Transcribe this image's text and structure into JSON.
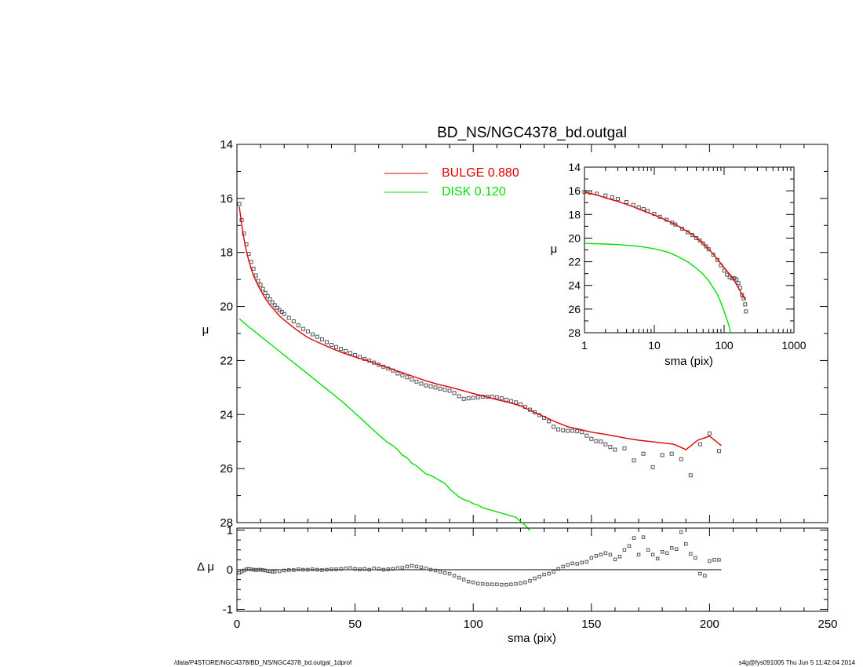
{
  "footer": {
    "path": "/data/P4STORE/NGC4378/BD_NS/NGC4378_bd.outgal_1dprof",
    "stamp": "s4g@fys091005  Thu Jun  5 11:42:04 2014"
  },
  "colors": {
    "bulge": "#e00000",
    "disk": "#00e000",
    "data": "#555555",
    "axis": "#000000"
  },
  "chart_data": [
    {
      "type": "scatter",
      "panel": "main",
      "title": "BD_NS/NGC4378_bd.outgal",
      "xlabel": "",
      "ylabel": "μ",
      "xlim": [
        0,
        250
      ],
      "ylim": [
        28,
        14
      ],
      "y_inverted": true,
      "xticks": [
        0,
        50,
        100,
        150,
        200,
        250
      ],
      "yticks": [
        14,
        16,
        18,
        20,
        22,
        24,
        26,
        28
      ],
      "ytick_labels": [
        "14",
        "16",
        "18",
        "20",
        "22",
        "24",
        "26",
        "28"
      ],
      "legend": {
        "placement": "top-center",
        "entries": [
          {
            "key": "bulge",
            "label": "BULGE  0.880"
          },
          {
            "key": "disk",
            "label": "DISK  0.120"
          }
        ]
      },
      "series": [
        {
          "key": "data",
          "style": "squares",
          "x": [
            1,
            2,
            3,
            4,
            5,
            6,
            7,
            8,
            9,
            10,
            11,
            12,
            13,
            14,
            15,
            16,
            17,
            18,
            19,
            20,
            22,
            24,
            26,
            28,
            30,
            32,
            34,
            36,
            38,
            40,
            42,
            44,
            46,
            48,
            50,
            52,
            54,
            56,
            58,
            60,
            62,
            64,
            66,
            68,
            70,
            72,
            74,
            76,
            78,
            80,
            82,
            84,
            86,
            88,
            90,
            92,
            94,
            96,
            98,
            100,
            102,
            104,
            106,
            108,
            110,
            112,
            114,
            116,
            118,
            120,
            122,
            124,
            126,
            128,
            130,
            132,
            134,
            136,
            138,
            140,
            142,
            144,
            146,
            148,
            150,
            152,
            154,
            156,
            158,
            160,
            164,
            168,
            172,
            176,
            180,
            184,
            188,
            192,
            196,
            200,
            204
          ],
          "y": [
            16.2,
            16.8,
            17.3,
            17.7,
            18.05,
            18.35,
            18.6,
            18.85,
            19.05,
            19.2,
            19.35,
            19.5,
            19.62,
            19.74,
            19.85,
            19.95,
            20.05,
            20.13,
            20.2,
            20.28,
            20.42,
            20.55,
            20.7,
            20.83,
            20.92,
            21.03,
            21.12,
            21.22,
            21.32,
            21.42,
            21.5,
            21.57,
            21.65,
            21.72,
            21.8,
            21.87,
            21.94,
            22.0,
            22.08,
            22.16,
            22.23,
            22.3,
            22.37,
            22.48,
            22.55,
            22.62,
            22.7,
            22.78,
            22.86,
            22.92,
            22.96,
            23.0,
            23.04,
            23.08,
            23.12,
            23.2,
            23.32,
            23.42,
            23.4,
            23.38,
            23.36,
            23.34,
            23.34,
            23.34,
            23.36,
            23.4,
            23.45,
            23.5,
            23.55,
            23.62,
            23.72,
            23.82,
            23.92,
            24.02,
            24.12,
            24.25,
            24.45,
            24.55,
            24.58,
            24.6,
            24.6,
            24.62,
            24.65,
            24.78,
            24.9,
            24.98,
            25.0,
            25.1,
            25.2,
            25.3,
            25.25,
            25.7,
            25.45,
            25.95,
            25.5,
            25.45,
            25.65,
            26.25,
            25.1,
            24.7,
            25.35
          ]
        },
        {
          "key": "bulge",
          "style": "line",
          "x": [
            1,
            2,
            3,
            4,
            5,
            6,
            7,
            8,
            10,
            12,
            14,
            16,
            18,
            20,
            25,
            30,
            35,
            40,
            45,
            50,
            55,
            60,
            65,
            70,
            75,
            80,
            85,
            90,
            95,
            100,
            105,
            110,
            115,
            120,
            125,
            130,
            135,
            140,
            145,
            150,
            155,
            160,
            165,
            170,
            175,
            180,
            185,
            190,
            195,
            200,
            205
          ],
          "y": [
            16.3,
            16.95,
            17.5,
            17.95,
            18.3,
            18.6,
            18.85,
            19.05,
            19.4,
            19.7,
            19.95,
            20.15,
            20.35,
            20.5,
            20.85,
            21.15,
            21.35,
            21.55,
            21.72,
            21.87,
            22.0,
            22.15,
            22.3,
            22.45,
            22.6,
            22.75,
            22.88,
            22.98,
            23.1,
            23.22,
            23.33,
            23.45,
            23.55,
            23.68,
            23.88,
            24.08,
            24.28,
            24.45,
            24.55,
            24.65,
            24.72,
            24.8,
            24.88,
            24.95,
            25.0,
            25.05,
            25.1,
            25.3,
            24.95,
            24.8,
            25.15
          ]
        },
        {
          "key": "disk",
          "style": "line",
          "x": [
            1,
            5,
            10,
            15,
            20,
            25,
            30,
            35,
            40,
            45,
            50,
            55,
            60,
            62,
            64,
            66,
            68,
            70,
            72,
            74,
            76,
            78,
            80,
            82,
            84,
            86,
            88,
            90,
            92,
            94,
            96,
            98,
            100,
            102,
            104,
            106,
            108,
            110,
            112,
            114,
            116,
            118,
            120,
            122,
            124
          ],
          "y": [
            20.45,
            20.75,
            21.1,
            21.45,
            21.8,
            22.15,
            22.5,
            22.85,
            23.2,
            23.55,
            23.95,
            24.35,
            24.75,
            24.9,
            25.05,
            25.15,
            25.3,
            25.5,
            25.6,
            25.8,
            25.9,
            26.05,
            26.2,
            26.25,
            26.35,
            26.45,
            26.55,
            26.75,
            26.9,
            27.05,
            27.15,
            27.2,
            27.3,
            27.35,
            27.45,
            27.5,
            27.55,
            27.6,
            27.65,
            27.7,
            27.75,
            27.8,
            27.95,
            28.1,
            28.3
          ]
        }
      ]
    },
    {
      "type": "scatter",
      "panel": "inset",
      "title": "",
      "xlabel": "sma (pix)",
      "ylabel": "μ",
      "xscale": "log",
      "xlim": [
        1,
        1000
      ],
      "ylim": [
        28,
        14
      ],
      "y_inverted": true,
      "xticks": [
        1,
        10,
        100,
        1000
      ],
      "xtick_labels": [
        "1",
        "10",
        "100",
        "1000"
      ],
      "yticks": [
        14,
        16,
        18,
        20,
        22,
        24,
        26,
        28
      ],
      "ytick_labels": [
        "14",
        "16",
        "18",
        "20",
        "22",
        "24",
        "26",
        "28"
      ],
      "series": [
        {
          "key": "data",
          "style": "squares",
          "x": [
            1,
            1.2,
            1.5,
            2,
            2.5,
            3,
            4,
            5,
            6,
            7,
            8,
            10,
            12,
            15,
            18,
            20,
            25,
            30,
            35,
            40,
            45,
            50,
            55,
            60,
            70,
            80,
            90,
            100,
            110,
            120,
            130,
            140,
            150,
            160,
            170,
            180,
            190,
            200,
            205
          ],
          "y": [
            16.1,
            16.15,
            16.25,
            16.4,
            16.55,
            16.7,
            16.95,
            17.2,
            17.4,
            17.55,
            17.7,
            17.95,
            18.2,
            18.45,
            18.7,
            18.85,
            19.2,
            19.5,
            19.75,
            20.0,
            20.2,
            20.45,
            20.7,
            20.95,
            21.4,
            21.85,
            22.3,
            22.75,
            23.1,
            23.3,
            23.4,
            23.4,
            23.5,
            23.8,
            24.2,
            24.8,
            25.1,
            25.6,
            26.2
          ]
        },
        {
          "key": "bulge",
          "style": "line",
          "x": [
            1,
            1.5,
            2,
            3,
            4,
            5,
            7,
            10,
            15,
            20,
            30,
            40,
            50,
            70,
            100,
            130,
            160,
            190,
            205
          ],
          "y": [
            16.1,
            16.35,
            16.6,
            16.9,
            17.15,
            17.35,
            17.7,
            18.05,
            18.5,
            18.85,
            19.45,
            19.95,
            20.45,
            21.35,
            22.5,
            23.3,
            24.2,
            25.0,
            25.2
          ]
        },
        {
          "key": "disk",
          "style": "line",
          "x": [
            1,
            2,
            3,
            5,
            7,
            10,
            15,
            20,
            30,
            40,
            50,
            60,
            70,
            80,
            90,
            100,
            110,
            120,
            124
          ],
          "y": [
            20.45,
            20.5,
            20.55,
            20.65,
            20.75,
            20.9,
            21.15,
            21.45,
            22.0,
            22.55,
            23.05,
            23.6,
            24.2,
            24.75,
            25.45,
            26.2,
            26.9,
            27.6,
            28.1
          ]
        }
      ]
    },
    {
      "type": "scatter",
      "panel": "residual",
      "title": "",
      "xlabel": "sma (pix)",
      "ylabel": "Δ μ",
      "xlim": [
        0,
        250
      ],
      "ylim": [
        -1.05,
        1.05
      ],
      "xticks": [
        0,
        50,
        100,
        150,
        200,
        250
      ],
      "xtick_labels": [
        "0",
        "50",
        "100",
        "150",
        "200",
        "250"
      ],
      "yticks": [
        -1,
        0,
        1
      ],
      "ytick_labels": [
        "-1",
        "0",
        "1"
      ],
      "zero_line": true,
      "series": [
        {
          "key": "data",
          "style": "squares",
          "x": [
            1,
            2,
            3,
            4,
            5,
            6,
            7,
            8,
            9,
            10,
            11,
            12,
            13,
            14,
            15,
            16,
            18,
            20,
            22,
            24,
            26,
            28,
            30,
            32,
            34,
            36,
            38,
            40,
            42,
            44,
            46,
            48,
            50,
            52,
            54,
            56,
            58,
            60,
            62,
            64,
            66,
            68,
            70,
            72,
            74,
            76,
            78,
            80,
            82,
            84,
            86,
            88,
            90,
            92,
            94,
            96,
            98,
            100,
            102,
            104,
            106,
            108,
            110,
            112,
            114,
            116,
            118,
            120,
            122,
            124,
            126,
            128,
            130,
            132,
            134,
            136,
            138,
            140,
            142,
            144,
            146,
            148,
            150,
            152,
            154,
            156,
            158,
            160,
            162,
            164,
            166,
            168,
            170,
            172,
            174,
            176,
            178,
            180,
            182,
            184,
            186,
            188,
            190,
            192,
            194,
            196,
            198,
            200,
            202,
            204
          ],
          "y": [
            -0.08,
            -0.05,
            -0.02,
            0.01,
            0.02,
            0.01,
            0.0,
            -0.01,
            0.0,
            0.0,
            -0.01,
            -0.02,
            -0.03,
            -0.04,
            -0.05,
            -0.05,
            -0.04,
            -0.02,
            -0.01,
            -0.01,
            0.01,
            0.0,
            0.0,
            0.01,
            0.0,
            -0.01,
            0.0,
            0.01,
            0.01,
            0.02,
            0.03,
            0.04,
            0.02,
            0.01,
            0.02,
            0.0,
            0.03,
            0.02,
            0.0,
            0.01,
            0.02,
            0.04,
            0.05,
            0.08,
            0.1,
            0.08,
            0.06,
            0.03,
            0.0,
            -0.02,
            -0.05,
            -0.08,
            -0.1,
            -0.15,
            -0.2,
            -0.25,
            -0.3,
            -0.32,
            -0.35,
            -0.36,
            -0.37,
            -0.37,
            -0.37,
            -0.38,
            -0.38,
            -0.37,
            -0.36,
            -0.34,
            -0.32,
            -0.28,
            -0.22,
            -0.18,
            -0.12,
            -0.1,
            -0.05,
            0.02,
            0.08,
            0.12,
            0.16,
            0.15,
            0.18,
            0.2,
            0.3,
            0.35,
            0.38,
            0.42,
            0.38,
            0.26,
            0.33,
            0.5,
            0.6,
            0.8,
            0.38,
            0.82,
            0.5,
            0.38,
            0.28,
            0.45,
            0.42,
            0.55,
            0.52,
            0.95,
            0.65,
            0.4,
            0.3,
            -0.1,
            -0.15,
            0.22,
            0.25,
            0.25
          ]
        }
      ]
    }
  ]
}
